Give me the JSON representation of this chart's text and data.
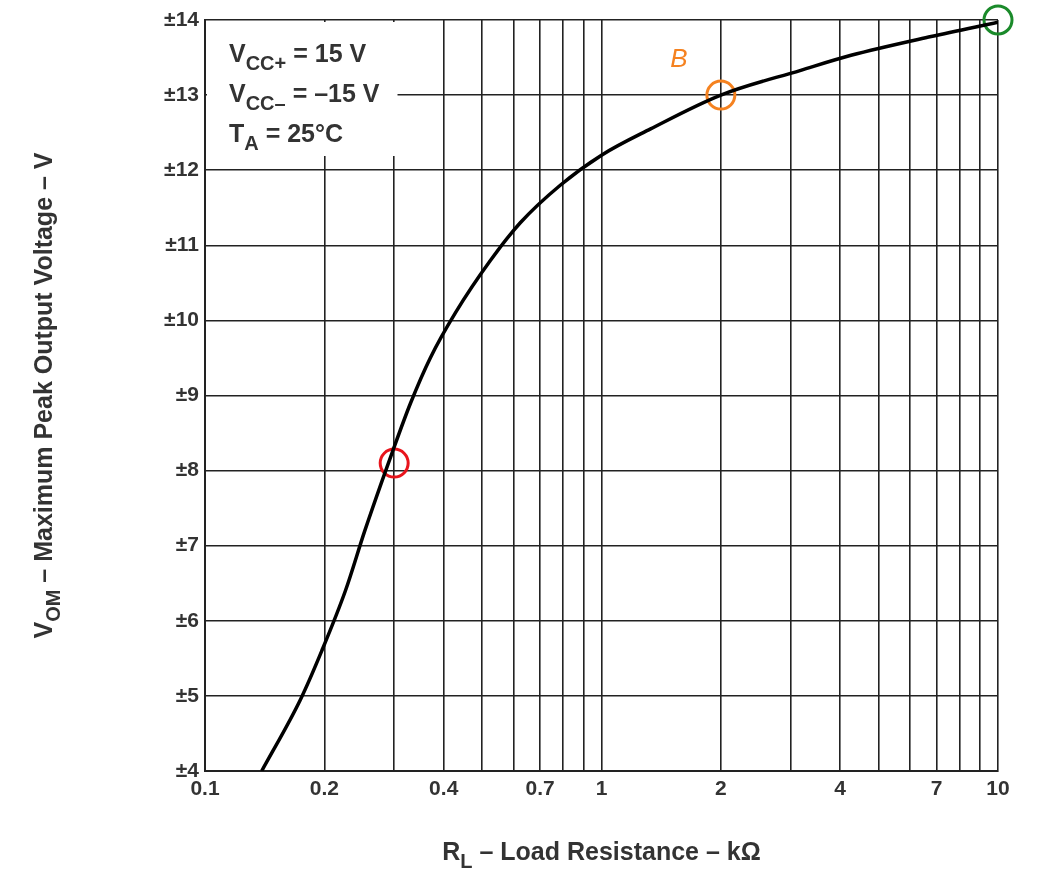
{
  "chart_data": {
    "type": "line",
    "xlabel": "R$_{L}$ – Load Resistance – kΩ",
    "ylabel": "V$_{OM}$ – Maximum Peak Output Voltage – V",
    "log": "x",
    "grid": true,
    "legend": false,
    "xlim": [
      0.1,
      10
    ],
    "ylim": [
      4,
      14
    ],
    "xticks": [
      0.1,
      0.2,
      {
        "value": 0.3,
        "label": null
      },
      0.4,
      {
        "value": 0.5,
        "label": null
      },
      {
        "value": 0.6,
        "label": null
      },
      0.7,
      {
        "value": 0.8,
        "label": null
      },
      {
        "value": 0.9,
        "label": null
      },
      1,
      2,
      {
        "value": 3,
        "label": null
      },
      4,
      {
        "value": 5,
        "label": null
      },
      {
        "value": 6,
        "label": null
      },
      7,
      {
        "value": 8,
        "label": null
      },
      {
        "value": 9,
        "label": null
      },
      10
    ],
    "yticks": [
      {
        "value": 4,
        "label": "±4"
      },
      {
        "value": 5,
        "label": "±5"
      },
      {
        "value": 6,
        "label": "±6"
      },
      {
        "value": 7,
        "label": "±7"
      },
      {
        "value": 8,
        "label": "±8"
      },
      {
        "value": 9,
        "label": "±9"
      },
      {
        "value": 10,
        "label": "±10"
      },
      {
        "value": 11,
        "label": "±11"
      },
      {
        "value": 12,
        "label": "±12"
      },
      {
        "value": 13,
        "label": "±13"
      },
      {
        "value": 14,
        "label": "±14"
      }
    ],
    "series": [
      {
        "type": "line",
        "color": "#000000",
        "marker": "none",
        "line_style": "solid",
        "x": [
          0.139,
          0.174,
          0.197,
          0.226,
          0.253,
          0.297,
          0.33,
          0.37,
          0.428,
          0.525,
          0.624,
          0.787,
          1,
          1.33,
          2,
          3.18,
          4.26,
          6.78,
          10
        ],
        "values": [
          4,
          4.95,
          5.6,
          6.4,
          7.2,
          8.25,
          8.9,
          9.5,
          10.1,
          10.8,
          11.3,
          11.8,
          12.2,
          12.55,
          13,
          13.33,
          13.53,
          13.78,
          13.97
        ]
      },
      {
        "type": "scatter",
        "marker": "circle",
        "colors": [
          "#e8141c",
          "#f58220",
          "#1a8a2a"
        ],
        "x": [
          0.3,
          2,
          10
        ],
        "values": [
          8.1,
          13,
          14
        ]
      }
    ],
    "annotations": [
      "V$_{CC+}$ = 15 V",
      "V$_{CC–}$ = –15 V",
      "T$_{A}$ = 25°C",
      {
        "text": "B",
        "x": 2,
        "y": 13
      }
    ]
  }
}
